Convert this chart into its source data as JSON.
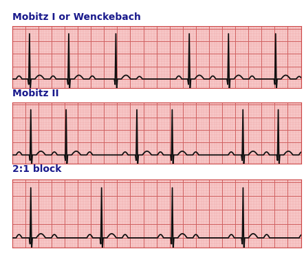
{
  "title1": "Mobitz I or Wenckebach",
  "title2": "Mobitz II",
  "title3": "2:1 block",
  "bg_color": "#ffffff",
  "ecg_bg": "#f7c8c8",
  "grid_minor_color": "#f0a8a8",
  "grid_major_color": "#d06060",
  "ecg_line_color": "#111111",
  "title_color": "#1a1a8c",
  "title_fontsize": 10,
  "title_fontweight": "bold",
  "panel_border_color": "#cc4444"
}
